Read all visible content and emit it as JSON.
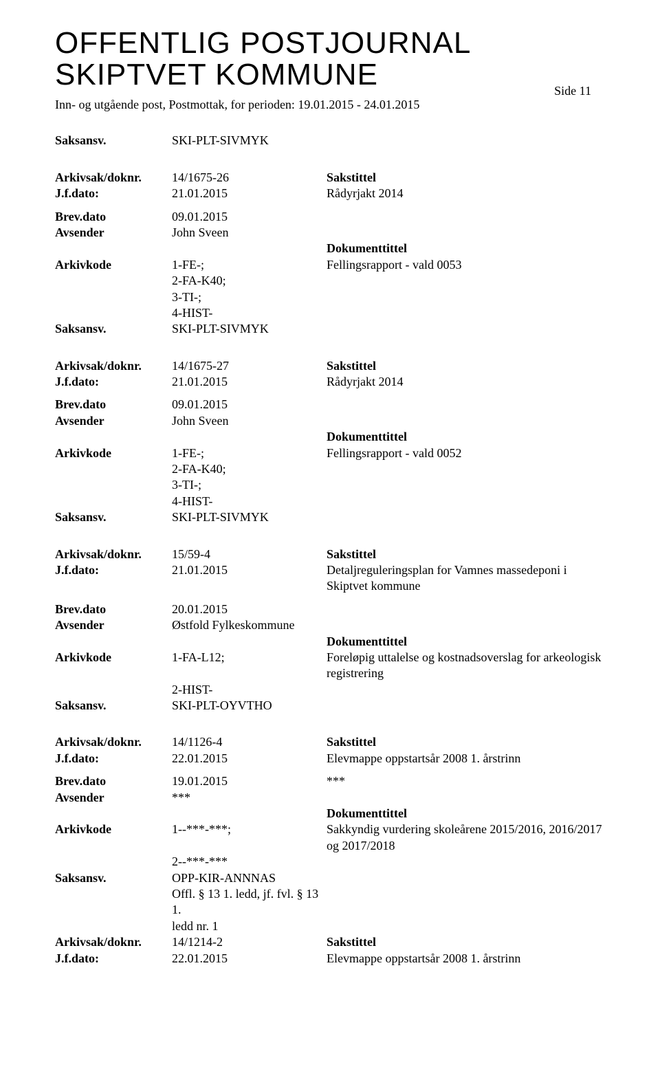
{
  "header": {
    "title_line1": "OFFENTLIG POSTJOURNAL",
    "title_line2": "SKIPTVET KOMMUNE",
    "side_label": "Side 11",
    "subheader": "Inn- og utgående post, Postmottak, for perioden: 19.01.2015 - 24.01.2015"
  },
  "labels": {
    "saksansv": "Saksansv.",
    "arkivsak": "Arkivsak/doknr.",
    "jfdato": "J.f.dato:",
    "brevdato": "Brev.dato",
    "avsender": "Avsender",
    "arkivkode": "Arkivkode",
    "sakstittel": "Sakstittel",
    "dokumenttittel": "Dokumenttittel"
  },
  "entries": [
    {
      "pre_saksansv": "SKI-PLT-SIVMYK",
      "arkivsak": "14/1675-26",
      "jfdato": "21.01.2015",
      "sakstittel": "Rådyrjakt 2014",
      "brevdato": "09.01.2015",
      "avsender": "John Sveen",
      "arkivkode_lines": [
        "1-FE-;",
        "2-FA-K40;",
        "3-TI-;",
        "4-HIST-"
      ],
      "doktittel": "Fellingsrapport - vald 0053",
      "saksansv": "SKI-PLT-SIVMYK"
    },
    {
      "arkivsak": "14/1675-27",
      "jfdato": "21.01.2015",
      "sakstittel": "Rådyrjakt 2014",
      "brevdato": "09.01.2015",
      "avsender": "John Sveen",
      "arkivkode_lines": [
        "1-FE-;",
        "2-FA-K40;",
        "3-TI-;",
        "4-HIST-"
      ],
      "doktittel": "Fellingsrapport - vald 0052",
      "saksansv": "SKI-PLT-SIVMYK"
    },
    {
      "arkivsak": "15/59-4",
      "jfdato": "21.01.2015",
      "sakstittel": "Detaljreguleringsplan for Vamnes massedeponi i Skiptvet kommune",
      "brevdato": "20.01.2015",
      "avsender": "Østfold Fylkeskommune",
      "arkivkode_lines": [
        "1-FA-L12;",
        "2-HIST-"
      ],
      "doktittel": "Foreløpig uttalelse og kostnadsoverslag for arkeologisk registrering",
      "saksansv": "SKI-PLT-OYVTHO"
    },
    {
      "arkivsak": "14/1126-4",
      "jfdato": "22.01.2015",
      "sakstittel": "Elevmappe oppstartsår 2008 1. årstrinn",
      "brevdato": "19.01.2015",
      "brevdato_extra": "***",
      "avsender": "***",
      "arkivkode_lines": [
        "1--***-***;",
        "2--***-***"
      ],
      "doktittel": "Sakkyndig vurdering skoleårene 2015/2016, 2016/2017 og 2017/2018",
      "saksansv": "OPP-KIR-ANNNAS",
      "extra_lines": [
        "Offl. § 13 1. ledd, jf. fvl. § 13 1.",
        "ledd nr. 1"
      ],
      "trailing_arkivsak": "14/1214-2",
      "trailing_jfdato": "22.01.2015",
      "trailing_sakstittel": "Elevmappe oppstartsår 2008 1. årstrinn"
    }
  ]
}
